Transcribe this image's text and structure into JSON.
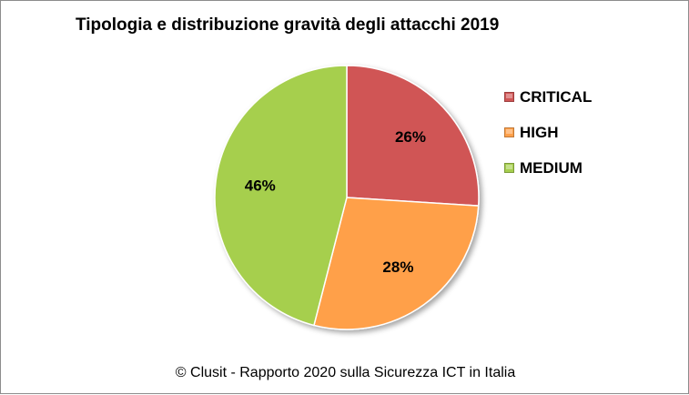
{
  "chart_data": {
    "type": "pie",
    "title": "Tipologia e distribuzione gravità degli attacchi 2019",
    "categories": [
      "CRITICAL",
      "HIGH",
      "MEDIUM"
    ],
    "values": [
      26,
      28,
      46
    ],
    "value_labels": [
      "26%",
      "28%",
      "46%"
    ],
    "colors": [
      "#d05555",
      "#ffa04a",
      "#a6cf4e"
    ],
    "legend_position": "right"
  },
  "footer": "© Clusit - Rapporto 2020 sulla Sicurezza ICT in Italia"
}
